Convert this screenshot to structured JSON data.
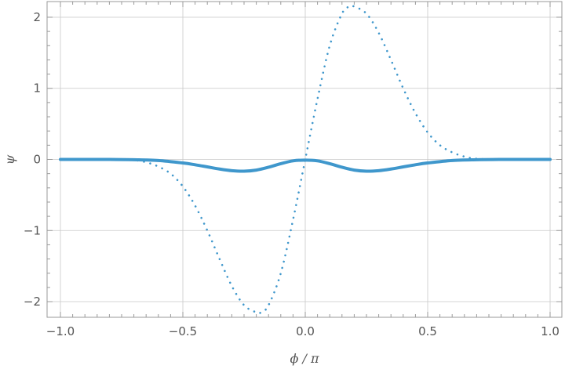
{
  "chart_data": {
    "type": "line",
    "xlabel": "ϕ / π",
    "ylabel": "ψ",
    "xlim": [
      -1.0,
      1.0
    ],
    "ylim": [
      -2.22,
      2.22
    ],
    "grid": true,
    "x_ticks": [
      -1.0,
      -0.5,
      0.0,
      0.5,
      1.0
    ],
    "x_tick_labels": [
      "−1.0",
      "−0.5",
      "0.0",
      "0.5",
      "1.0"
    ],
    "y_ticks": [
      -2,
      -1,
      0,
      1,
      2
    ],
    "y_tick_labels": [
      "−2",
      "−1",
      "0",
      "1",
      "2"
    ],
    "colors": {
      "series": "#3f97cc",
      "grid": "#c8c8c8",
      "frame": "#9a9a9a",
      "text": "#555555"
    },
    "series": [
      {
        "style": "solid",
        "x": [
          -1.0,
          -0.9,
          -0.8,
          -0.7,
          -0.6,
          -0.5,
          -0.45,
          -0.4,
          -0.35,
          -0.3,
          -0.25,
          -0.2,
          -0.15,
          -0.1,
          -0.05,
          0.0,
          0.05,
          0.1,
          0.15,
          0.2,
          0.25,
          0.3,
          0.35,
          0.4,
          0.45,
          0.5,
          0.6,
          0.7,
          0.8,
          0.9,
          1.0
        ],
        "y": [
          0.0,
          0.0,
          0.0,
          -0.004,
          -0.015,
          -0.05,
          -0.075,
          -0.105,
          -0.135,
          -0.158,
          -0.165,
          -0.15,
          -0.11,
          -0.06,
          -0.02,
          -0.01,
          -0.02,
          -0.06,
          -0.11,
          -0.15,
          -0.165,
          -0.158,
          -0.135,
          -0.105,
          -0.075,
          -0.05,
          -0.015,
          -0.004,
          0.0,
          0.0,
          0.0
        ]
      },
      {
        "style": "dotted",
        "x": [
          -1.0,
          -0.9,
          -0.8,
          -0.7,
          -0.65,
          -0.6,
          -0.55,
          -0.5,
          -0.45,
          -0.4,
          -0.35,
          -0.3,
          -0.25,
          -0.2,
          -0.18,
          -0.15,
          -0.1,
          -0.05,
          0.0,
          0.05,
          0.1,
          0.15,
          0.18,
          0.2,
          0.25,
          0.3,
          0.35,
          0.4,
          0.45,
          0.5,
          0.55,
          0.6,
          0.65,
          0.7,
          0.8,
          0.9,
          1.0
        ],
        "y": [
          0.0,
          0.0,
          0.0,
          -0.01,
          -0.04,
          -0.1,
          -0.2,
          -0.38,
          -0.65,
          -1.0,
          -1.4,
          -1.78,
          -2.05,
          -2.15,
          -2.15,
          -2.05,
          -1.6,
          -0.85,
          0.0,
          0.85,
          1.6,
          2.05,
          2.15,
          2.15,
          2.05,
          1.78,
          1.4,
          1.0,
          0.65,
          0.38,
          0.2,
          0.1,
          0.04,
          0.01,
          0.0,
          0.0,
          0.0
        ]
      }
    ]
  }
}
